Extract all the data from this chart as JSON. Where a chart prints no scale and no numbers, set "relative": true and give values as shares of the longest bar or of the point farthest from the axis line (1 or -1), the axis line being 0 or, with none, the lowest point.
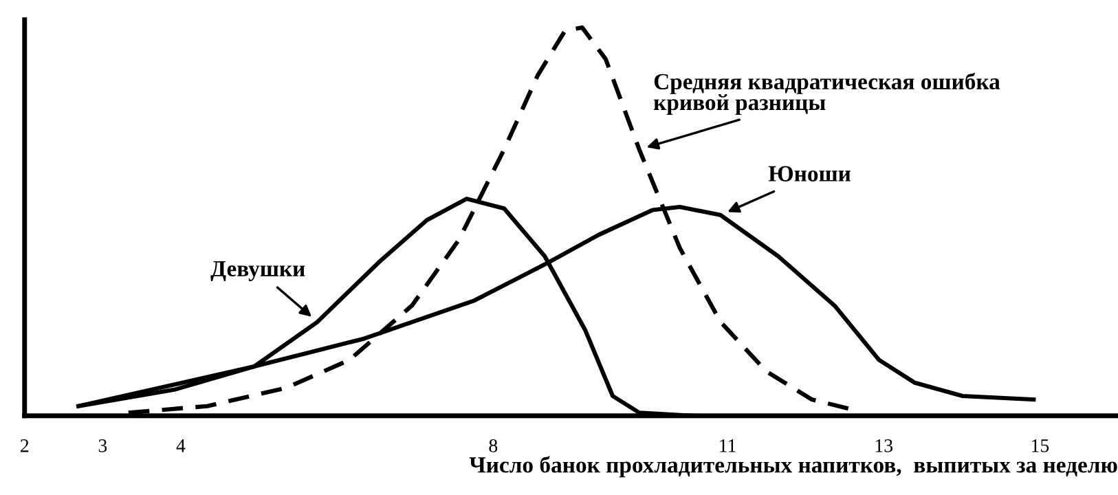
{
  "chart_data": {
    "type": "line",
    "relative": true,
    "xlabel": "Число банок прохладительных напитков,  выпитых за неделю",
    "xlim": [
      2,
      16
    ],
    "xticks": [
      2,
      3,
      4,
      8,
      11,
      13,
      15
    ],
    "grid": false,
    "legend": false,
    "marker": "none",
    "series": [
      {
        "name": "Девушки",
        "color": "#000000",
        "line_style": "solid",
        "x": [
          2.69,
          3.93,
          4.94,
          5.75,
          6.55,
          7.15,
          7.66,
          8.14,
          8.66,
          9.18,
          9.53,
          9.87,
          10.56
        ],
        "values": [
          0.025,
          0.068,
          0.127,
          0.242,
          0.398,
          0.504,
          0.559,
          0.534,
          0.411,
          0.22,
          0.051,
          0.008,
          0
        ]
      },
      {
        "name": "Юноши",
        "color": "#000000",
        "line_style": "solid",
        "x": [
          2.69,
          3.93,
          4.94,
          6.35,
          7.76,
          8.66,
          9.35,
          10.04,
          10.39,
          10.91,
          11.65,
          12.37,
          12.94,
          13.4,
          14.01,
          14.92
        ],
        "values": [
          0.025,
          0.081,
          0.127,
          0.199,
          0.297,
          0.39,
          0.466,
          0.53,
          0.538,
          0.517,
          0.411,
          0.284,
          0.144,
          0.085,
          0.051,
          0.042
        ]
      },
      {
        "name": "Средняя квадратическая ошибка\nкривой разницы",
        "color": "#000000",
        "line_style": "dashed",
        "x": [
          3.33,
          4.34,
          5.35,
          6.16,
          6.96,
          7.56,
          8.14,
          8.57,
          8.92,
          9.14,
          9.44,
          9.87,
          10.39,
          10.91,
          11.5,
          12.08,
          12.58
        ],
        "values": [
          0.008,
          0.025,
          0.072,
          0.144,
          0.284,
          0.453,
          0.686,
          0.877,
          0.992,
          1.0,
          0.919,
          0.686,
          0.432,
          0.242,
          0.114,
          0.042,
          0.017
        ]
      }
    ]
  }
}
